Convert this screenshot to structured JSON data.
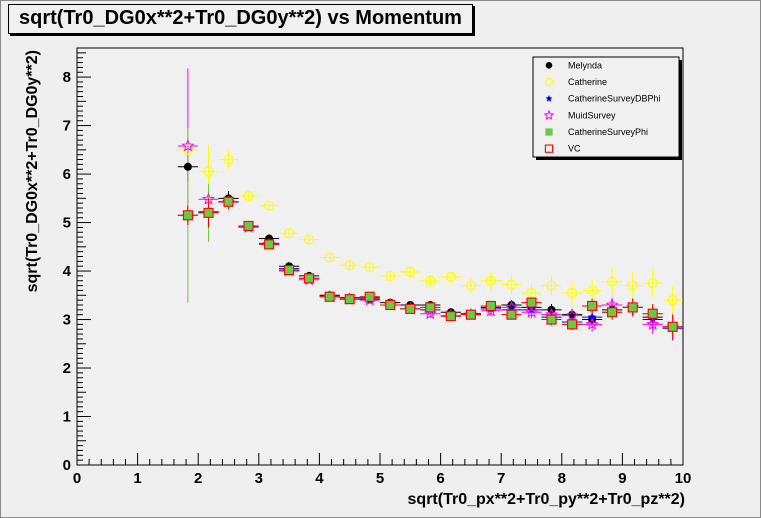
{
  "chart_data": {
    "type": "scatter",
    "title": "sqrt(Tr0_DG0x**2+Tr0_DG0y**2) vs Momentum",
    "xlabel": "sqrt(Tr0_px**2+Tr0_py**2+Tr0_pz**2)",
    "ylabel": "sqrt(Tr0_DG0x**2+Tr0_DG0y**2)",
    "xlim": [
      0,
      10
    ],
    "ylim": [
      0,
      8.6
    ],
    "xticks": [
      "0",
      "1",
      "2",
      "3",
      "4",
      "5",
      "6",
      "7",
      "8",
      "9",
      "10"
    ],
    "yticks": [
      "0",
      "1",
      "2",
      "3",
      "4",
      "5",
      "6",
      "7",
      "8"
    ],
    "grid": false,
    "legend_position": "top-right",
    "series": [
      {
        "name": "Melynda",
        "color": "#000000",
        "marker": "filled-circle",
        "x": [
          1.83,
          2.17,
          2.5,
          2.83,
          3.17,
          3.5,
          3.83,
          4.17,
          4.5,
          4.83,
          5.17,
          5.5,
          5.83,
          6.17,
          6.5,
          6.83,
          7.17,
          7.5,
          7.83,
          8.17,
          8.5,
          8.83,
          9.17,
          9.5,
          9.83
        ],
        "y": [
          6.15,
          5.22,
          5.5,
          4.93,
          4.67,
          4.1,
          3.9,
          3.5,
          3.45,
          3.42,
          3.35,
          3.3,
          3.3,
          3.15,
          3.12,
          3.25,
          3.3,
          3.25,
          3.2,
          3.1,
          3.0,
          3.2,
          3.25,
          3.05,
          2.85
        ],
        "err": [
          0.3,
          0.25,
          0.15,
          0.08,
          0.08,
          0.07,
          0.07,
          0.07,
          0.07,
          0.07,
          0.07,
          0.08,
          0.08,
          0.08,
          0.08,
          0.1,
          0.1,
          0.12,
          0.12,
          0.12,
          0.15,
          0.15,
          0.18,
          0.2,
          0.25
        ]
      },
      {
        "name": "Catherine",
        "color": "#ffff00",
        "marker": "open-circle",
        "x": [
          1.83,
          2.17,
          2.5,
          2.83,
          3.17,
          3.5,
          3.83,
          4.17,
          4.5,
          4.83,
          5.17,
          5.5,
          5.83,
          6.17,
          6.5,
          6.83,
          7.17,
          7.5,
          7.83,
          8.17,
          8.5,
          8.83,
          9.17,
          9.5,
          9.83
        ],
        "y": [
          6.5,
          6.05,
          6.3,
          5.55,
          5.35,
          4.78,
          4.65,
          4.28,
          4.12,
          4.08,
          3.9,
          3.98,
          3.8,
          3.88,
          3.7,
          3.8,
          3.72,
          3.55,
          3.7,
          3.55,
          3.6,
          3.78,
          3.7,
          3.75,
          3.4
        ],
        "err": [
          0.35,
          0.55,
          0.2,
          0.1,
          0.1,
          0.1,
          0.1,
          0.1,
          0.1,
          0.1,
          0.1,
          0.12,
          0.12,
          0.12,
          0.15,
          0.2,
          0.2,
          0.2,
          0.2,
          0.25,
          0.25,
          0.28,
          0.28,
          0.3,
          0.3
        ]
      },
      {
        "name": "CatherineSurveyDBPhi",
        "color": "#0000ff",
        "marker": "star",
        "x": [
          1.83,
          2.17,
          2.5,
          2.83,
          3.17,
          3.5,
          3.83,
          4.17,
          4.5,
          4.83,
          5.17,
          5.5,
          5.83,
          6.17,
          6.5,
          6.83,
          7.17,
          7.5,
          7.83,
          8.17,
          8.5,
          8.83,
          9.17,
          9.5,
          9.83
        ],
        "y": [
          5.15,
          5.2,
          5.43,
          4.92,
          4.57,
          4.05,
          3.85,
          3.48,
          3.42,
          3.45,
          3.3,
          3.22,
          3.2,
          3.07,
          3.1,
          3.22,
          3.2,
          3.2,
          3.05,
          2.95,
          3.05,
          3.15,
          3.25,
          3.0,
          2.82
        ],
        "err": [
          0.2,
          0.3,
          0.15,
          0.08,
          0.08,
          0.07,
          0.07,
          0.07,
          0.07,
          0.07,
          0.07,
          0.08,
          0.08,
          0.08,
          0.08,
          0.1,
          0.1,
          0.12,
          0.12,
          0.12,
          0.15,
          0.15,
          0.18,
          0.2,
          0.25
        ]
      },
      {
        "name": "MuidSurvey",
        "color": "#ff00ff",
        "marker": "open-star",
        "x": [
          1.83,
          2.17,
          2.5,
          2.83,
          3.17,
          3.5,
          3.83,
          4.17,
          4.5,
          4.83,
          5.17,
          5.5,
          5.83,
          6.17,
          6.5,
          6.83,
          7.17,
          7.5,
          7.83,
          8.17,
          8.5,
          8.83,
          9.17,
          9.5,
          9.83
        ],
        "y": [
          6.58,
          5.48,
          5.42,
          4.9,
          4.55,
          4.0,
          3.82,
          3.47,
          3.42,
          3.4,
          3.3,
          3.22,
          3.12,
          3.08,
          3.1,
          3.18,
          3.25,
          3.15,
          3.1,
          3.08,
          2.9,
          3.3,
          3.25,
          2.9,
          2.85
        ],
        "err": [
          1.6,
          0.3,
          0.15,
          0.08,
          0.08,
          0.07,
          0.07,
          0.07,
          0.07,
          0.07,
          0.07,
          0.08,
          0.08,
          0.08,
          0.08,
          0.1,
          0.1,
          0.12,
          0.12,
          0.12,
          0.15,
          0.15,
          0.18,
          0.2,
          0.25
        ]
      },
      {
        "name": "CatherineSurveyPhi",
        "color": "#66cc44",
        "marker": "filled-square",
        "x": [
          1.83,
          2.17,
          2.5,
          2.83,
          3.17,
          3.5,
          3.83,
          4.17,
          4.5,
          4.83,
          5.17,
          5.5,
          5.83,
          6.17,
          6.5,
          6.83,
          7.17,
          7.5,
          7.83,
          8.17,
          8.5,
          8.83,
          9.17,
          9.5,
          9.83
        ],
        "y": [
          5.15,
          5.2,
          5.43,
          4.93,
          4.55,
          4.02,
          3.85,
          3.47,
          3.42,
          3.47,
          3.3,
          3.22,
          3.25,
          3.07,
          3.1,
          3.28,
          3.1,
          3.35,
          3.0,
          2.9,
          3.28,
          3.15,
          3.25,
          3.12,
          2.85
        ],
        "err": [
          1.8,
          0.6,
          0.15,
          0.08,
          0.08,
          0.07,
          0.07,
          0.07,
          0.07,
          0.07,
          0.07,
          0.08,
          0.08,
          0.08,
          0.08,
          0.1,
          0.1,
          0.12,
          0.12,
          0.12,
          0.15,
          0.15,
          0.18,
          0.2,
          0.25
        ]
      },
      {
        "name": "VC",
        "color": "#ff0000",
        "marker": "open-square",
        "x": [
          1.83,
          2.17,
          2.5,
          2.83,
          3.17,
          3.5,
          3.83,
          4.17,
          4.5,
          4.83,
          5.17,
          5.5,
          5.83,
          6.17,
          6.5,
          6.83,
          7.17,
          7.5,
          7.83,
          8.17,
          8.5,
          8.83,
          9.17,
          9.5,
          9.83
        ],
        "y": [
          5.15,
          5.2,
          5.43,
          4.93,
          4.55,
          4.02,
          3.85,
          3.47,
          3.42,
          3.47,
          3.3,
          3.22,
          3.25,
          3.07,
          3.1,
          3.28,
          3.1,
          3.35,
          3.0,
          2.9,
          3.28,
          3.15,
          3.25,
          3.12,
          2.85
        ],
        "err": [
          0.2,
          0.3,
          0.15,
          0.08,
          0.08,
          0.07,
          0.07,
          0.07,
          0.07,
          0.07,
          0.07,
          0.08,
          0.08,
          0.08,
          0.08,
          0.1,
          0.1,
          0.12,
          0.12,
          0.12,
          0.15,
          0.15,
          0.18,
          0.2,
          0.25
        ]
      }
    ]
  }
}
